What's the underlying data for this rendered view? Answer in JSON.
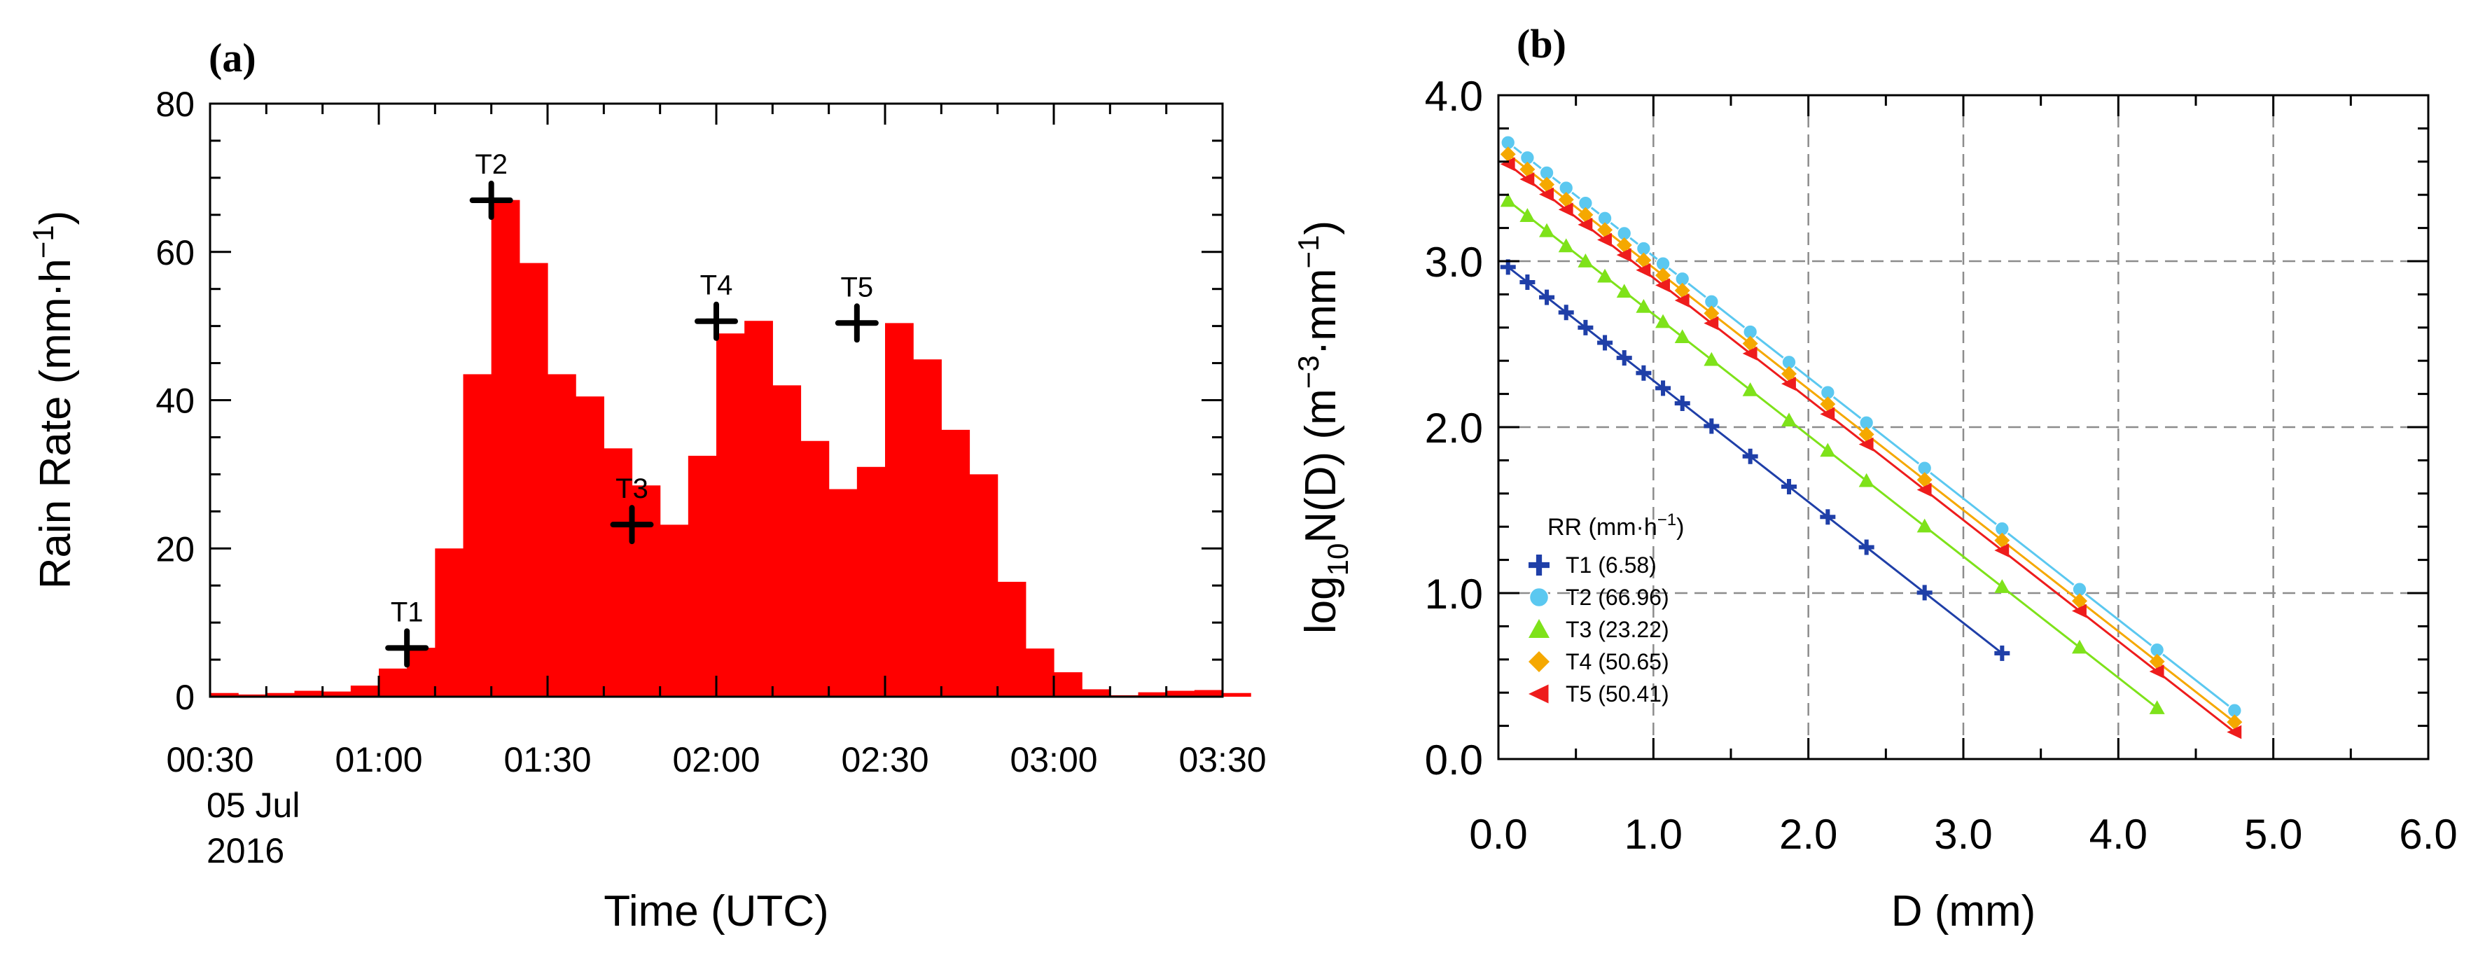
{
  "chart_data": [
    {
      "type": "bar",
      "panel_label": "(a)",
      "title": "",
      "ylabel": "Rain Rate (mm·h",
      "ylabel_exp": "−1",
      "ylabel_close": ")",
      "xlabel": "Time (UTC)",
      "ylim": [
        0,
        80
      ],
      "yticks": [
        0,
        20,
        40,
        60,
        80
      ],
      "x_start_min": 30,
      "x_end_min": 210,
      "bin_minutes": 5,
      "xtick_minutes": [
        30,
        60,
        90,
        120,
        150,
        180,
        210
      ],
      "xtick_labels": [
        "00:30",
        "01:00",
        "01:30",
        "02:00",
        "02:30",
        "03:00",
        "03:30"
      ],
      "date_label": [
        "05 Jul",
        "2016"
      ],
      "bar_color": "#ff0000",
      "values": [
        0.5,
        0.3,
        0.5,
        0.8,
        0.7,
        1.5,
        3.8,
        6.6,
        20.0,
        43.5,
        67.0,
        58.5,
        43.5,
        40.5,
        33.5,
        28.5,
        23.2,
        32.5,
        49.0,
        50.7,
        42.0,
        34.5,
        28.0,
        31.0,
        50.4,
        45.5,
        36.0,
        30.0,
        15.5,
        6.5,
        3.3,
        1.0,
        0.2,
        0.6,
        0.8,
        0.9,
        0.5
      ],
      "markers": [
        {
          "name": "T1",
          "minute": 65,
          "value": 6.58
        },
        {
          "name": "T2",
          "minute": 80,
          "value": 66.96
        },
        {
          "name": "T3",
          "minute": 105,
          "value": 23.22
        },
        {
          "name": "T4",
          "minute": 120,
          "value": 50.65
        },
        {
          "name": "T5",
          "minute": 145,
          "value": 50.41
        }
      ]
    },
    {
      "type": "line",
      "panel_label": "(b)",
      "title": "",
      "xlabel": "D (mm)",
      "ylabel_parts": [
        "log",
        "10",
        "N(D) (m",
        "−3",
        "·mm",
        "−1",
        ")"
      ],
      "xlim": [
        0,
        6
      ],
      "ylim": [
        0,
        4
      ],
      "xticks": [
        0,
        1,
        2,
        3,
        4,
        5,
        6
      ],
      "xtick_labels": [
        "0.0",
        "1.0",
        "2.0",
        "3.0",
        "4.0",
        "5.0",
        "6.0"
      ],
      "yticks": [
        0,
        1,
        2,
        3,
        4
      ],
      "ytick_labels": [
        "0.0",
        "1.0",
        "2.0",
        "3.0",
        "4.0"
      ],
      "grid": true,
      "legend_title": "RR (mm·h",
      "legend_title_exp": "−1",
      "legend_title_close": ")",
      "legend_position": "bottom-left",
      "series": [
        {
          "name": "T1",
          "label": "T1 (6.58)",
          "color": "#1f3fa8",
          "marker": "plus",
          "intercept": 3.01,
          "x_max": 3.25
        },
        {
          "name": "T2",
          "label": "T2 (66.96)",
          "color": "#5bc8f0",
          "marker": "circle",
          "intercept": 3.76,
          "x_max": 4.75
        },
        {
          "name": "T3",
          "label": "T3 (23.22)",
          "color": "#7ee21a",
          "marker": "triangle",
          "intercept": 3.41,
          "x_max": 4.25
        },
        {
          "name": "T4",
          "label": "T4 (50.65)",
          "color": "#f5a800",
          "marker": "diamond",
          "intercept": 3.69,
          "x_max": 4.75
        },
        {
          "name": "T5",
          "label": "T5 (50.41)",
          "color": "#ee1c1c",
          "marker": "left-triangle",
          "intercept": 3.63,
          "x_max": 4.75
        }
      ],
      "sample_d": [
        0.062,
        0.187,
        0.312,
        0.437,
        0.562,
        0.687,
        0.812,
        0.937,
        1.062,
        1.187,
        1.375,
        1.625,
        1.875,
        2.125,
        2.375,
        2.75,
        3.25,
        3.75,
        4.25,
        4.75
      ]
    }
  ]
}
